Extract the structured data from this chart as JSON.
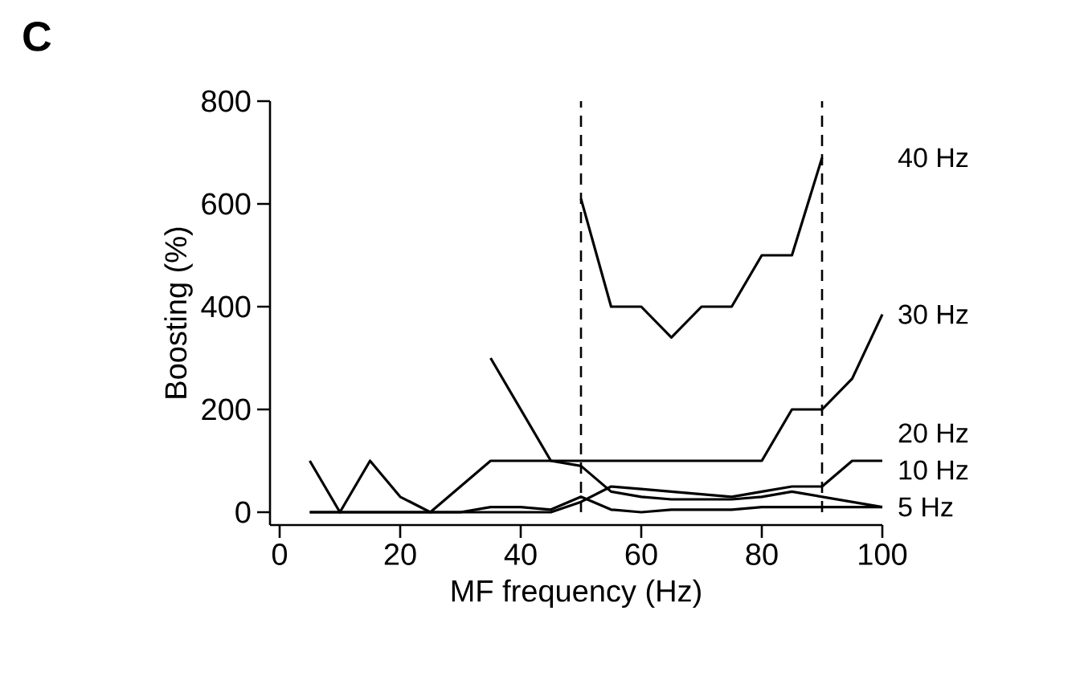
{
  "chart_data": {
    "type": "line",
    "title": "C",
    "xlabel": "MF frequency (Hz)",
    "ylabel": "Boosting (%)",
    "xlim": [
      -1.6,
      100
    ],
    "ylim": [
      -25,
      800
    ],
    "xticks": [
      0,
      20,
      40,
      60,
      80,
      100
    ],
    "yticks": [
      0,
      200,
      400,
      600,
      800
    ],
    "grid": false,
    "marker": "none",
    "line_style": "solid",
    "series": [
      {
        "name": "40  Hz",
        "color": "#000000",
        "x": [
          50,
          55,
          60,
          65,
          70,
          75,
          80,
          85,
          90
        ],
        "values": [
          610,
          400,
          400,
          340,
          400,
          400,
          500,
          500,
          690
        ]
      },
      {
        "name": "30 Hz",
        "color": "#000000",
        "x": [
          5,
          10,
          15,
          20,
          25,
          35,
          40,
          45,
          50,
          55,
          60,
          65,
          70,
          75,
          80,
          85,
          90,
          95,
          100
        ],
        "values": [
          0,
          0,
          0,
          0,
          0,
          100,
          100,
          100,
          100,
          100,
          100,
          100,
          100,
          100,
          100,
          200,
          200,
          260,
          385
        ]
      },
      {
        "name": "20  Hz",
        "color": "#000000",
        "x": [
          5,
          10,
          15,
          20,
          25,
          30,
          35,
          40,
          45,
          50,
          55,
          60,
          65,
          70,
          75,
          80,
          85,
          90,
          95,
          100
        ],
        "values": [
          100,
          0,
          100,
          30,
          0,
          0,
          0,
          0,
          0,
          20,
          50,
          45,
          40,
          35,
          30,
          40,
          50,
          50,
          100,
          100
        ]
      },
      {
        "name": "10 Hz",
        "color": "#000000",
        "x": [
          35,
          40,
          45,
          50,
          55,
          60,
          65,
          70,
          75,
          80,
          85,
          90,
          95,
          100
        ],
        "values": [
          300,
          200,
          100,
          90,
          40,
          30,
          25,
          25,
          25,
          30,
          40,
          30,
          20,
          10
        ]
      },
      {
        "name": "5  Hz",
        "color": "#000000",
        "x": [
          5,
          10,
          15,
          20,
          25,
          30,
          35,
          40,
          45,
          50,
          55,
          60,
          65,
          70,
          75,
          80,
          85,
          90,
          95,
          100
        ],
        "values": [
          0,
          0,
          0,
          0,
          0,
          0,
          10,
          10,
          5,
          30,
          5,
          0,
          5,
          5,
          5,
          10,
          10,
          10,
          10,
          10
        ]
      }
    ],
    "ref_lines": [
      {
        "axis": "x",
        "value": 50,
        "line_style": "dashed"
      },
      {
        "axis": "x",
        "value": 90,
        "line_style": "dashed"
      }
    ]
  }
}
